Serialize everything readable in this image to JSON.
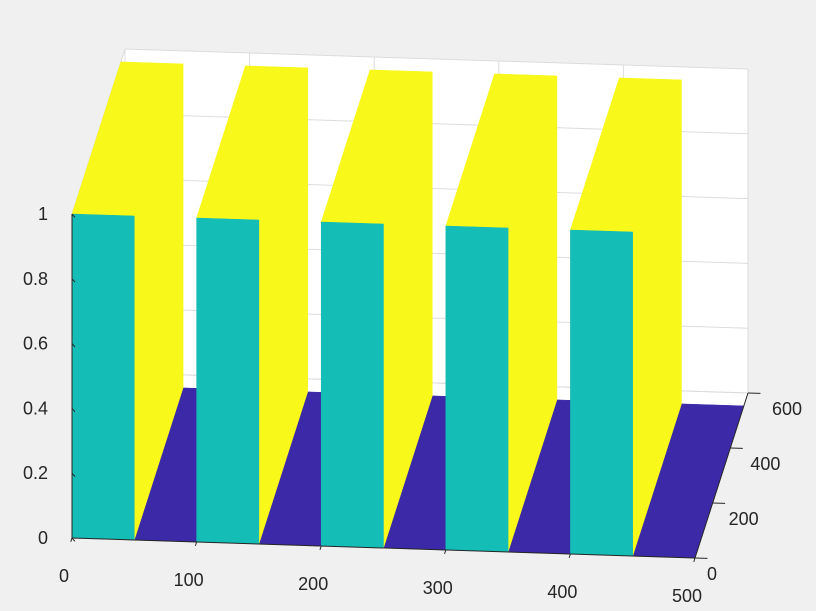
{
  "chart_data": {
    "type": "surface",
    "x_label": "",
    "y_label": "",
    "z_label": "",
    "x_ticks": [
      0,
      100,
      200,
      300,
      400,
      500
    ],
    "y_ticks": [
      0,
      200,
      400,
      600
    ],
    "z_ticks": [
      0,
      0.2,
      0.4,
      0.6,
      0.8,
      1
    ],
    "x_ticks_text": [
      "0",
      "100",
      "200",
      "300",
      "400",
      "500"
    ],
    "y_ticks_text": [
      "0",
      "200",
      "400",
      "600"
    ],
    "z_ticks_text": [
      "0",
      "0.2",
      "0.4",
      "0.6",
      "0.8",
      "1"
    ],
    "xlim": [
      0,
      500
    ],
    "ylim": [
      0,
      600
    ],
    "zlim": [
      0,
      1
    ],
    "grid": true,
    "pulse_period": 100,
    "pulse_on_width": 50,
    "pulses": [
      {
        "x_start": 0,
        "x_end": 50,
        "z": 1
      },
      {
        "x_start": 100,
        "x_end": 150,
        "z": 1
      },
      {
        "x_start": 200,
        "x_end": 250,
        "z": 1
      },
      {
        "x_start": 300,
        "x_end": 350,
        "z": 1
      },
      {
        "x_start": 400,
        "x_end": 450,
        "z": 1
      }
    ],
    "colors": {
      "high_plateau": "#f8f81a",
      "rising_wall": "#14bdb5",
      "low_floor": "#3c29a8",
      "axes_background": "#ffffff",
      "figure_background": "#f0f0f0",
      "grid": "#dcdcdc",
      "axis_line": "#262626"
    }
  }
}
